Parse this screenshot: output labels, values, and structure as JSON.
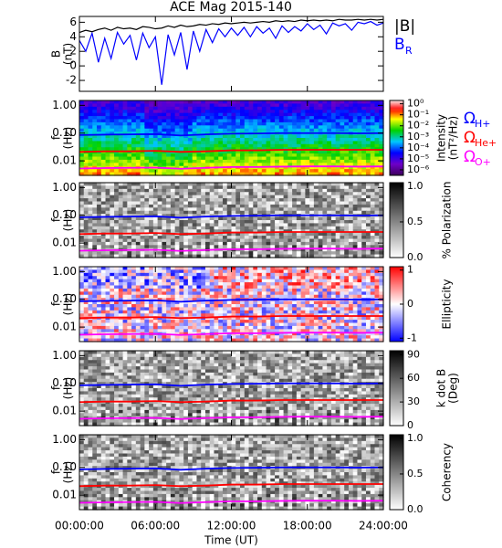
{
  "chart_data": [
    {
      "type": "line",
      "title": "ACE Mag 2015-140",
      "ylabel": [
        "B",
        "(nT)"
      ],
      "xlim": [
        0,
        24
      ],
      "ylim": [
        -3.5,
        6.8
      ],
      "yticks": [
        -2,
        0,
        2,
        4,
        6
      ],
      "x": [
        0,
        0.5,
        1,
        1.5,
        2,
        2.5,
        3,
        3.5,
        4,
        4.5,
        5,
        5.5,
        6,
        6.5,
        7,
        7.5,
        8,
        8.5,
        9,
        9.5,
        10,
        10.5,
        11,
        11.5,
        12,
        12.5,
        13,
        13.5,
        14,
        14.5,
        15,
        15.5,
        16,
        16.5,
        17,
        17.5,
        18,
        18.5,
        19,
        19.5,
        20,
        20.5,
        21,
        21.5,
        22,
        22.5,
        23,
        23.5,
        24
      ],
      "series": [
        {
          "name": "|B|",
          "color": "#000000",
          "values": [
            4.6,
            4.9,
            4.7,
            5.0,
            5.2,
            4.9,
            5.3,
            5.1,
            5.2,
            5.0,
            5.4,
            5.3,
            5.1,
            5.2,
            5.5,
            5.3,
            5.6,
            5.4,
            5.5,
            5.7,
            5.6,
            5.8,
            5.7,
            5.9,
            5.8,
            5.9,
            6.0,
            5.9,
            6.0,
            6.1,
            6.0,
            6.2,
            6.1,
            6.2,
            6.1,
            6.3,
            6.2,
            6.3,
            6.2,
            6.3,
            6.2,
            6.4,
            6.3,
            6.3,
            6.4,
            6.3,
            6.4,
            6.3,
            6.4
          ]
        },
        {
          "name": "B",
          "subscript": "R",
          "color": "#0000ff",
          "values": [
            3.5,
            2.0,
            4.5,
            0.5,
            3.8,
            1.0,
            4.6,
            3.0,
            4.2,
            0.8,
            4.5,
            2.5,
            4.0,
            -2.6,
            4.3,
            1.5,
            4.6,
            -0.5,
            4.8,
            2.0,
            5.0,
            3.2,
            5.1,
            4.0,
            5.2,
            4.2,
            5.3,
            4.0,
            5.4,
            4.5,
            5.2,
            3.8,
            5.5,
            4.6,
            5.4,
            4.8,
            5.8,
            5.0,
            5.6,
            4.4,
            5.9,
            5.5,
            5.8,
            4.9,
            6.0,
            5.8,
            6.1,
            5.6,
            5.9
          ]
        }
      ]
    },
    {
      "type": "spectrogram",
      "ylabel": [
        "f",
        "(Hz)"
      ],
      "log": true,
      "xlim": [
        0,
        24
      ],
      "ylim": [
        0.003,
        1.5
      ],
      "yticks": [
        {
          "value": 0.01,
          "label": "0.01"
        },
        {
          "value": 0.1,
          "label": "0.10"
        },
        {
          "value": 1,
          "label": "1.00"
        }
      ],
      "colorbar": {
        "label": [
          "Intensity",
          "(nT²/Hz)"
        ],
        "log": true,
        "colormap": "rainbow",
        "clim": [
          3.16e-07,
          2.0
        ],
        "ticks": [
          {
            "value": 1,
            "label": "10⁰"
          },
          {
            "value": 0.1,
            "label": "10⁻¹"
          },
          {
            "value": 0.01,
            "label": "10⁻²"
          },
          {
            "value": 0.001,
            "label": "10⁻³"
          },
          {
            "value": 0.0001,
            "label": "10⁻⁴"
          },
          {
            "value": 1e-05,
            "label": "10⁻⁵"
          },
          {
            "value": 1e-06,
            "label": "10⁻⁶"
          }
        ]
      },
      "x": [
        0,
        2,
        4,
        6,
        8,
        10,
        12,
        14,
        16,
        18,
        20,
        22,
        24
      ],
      "series": [
        {
          "name": "Ω",
          "subscript": "H+",
          "color": "#0000ff",
          "values": [
            0.085,
            0.088,
            0.09,
            0.092,
            0.082,
            0.09,
            0.095,
            0.097,
            0.1,
            0.1,
            0.1,
            0.098,
            0.1
          ]
        },
        {
          "name": "Ω",
          "subscript": "He+",
          "color": "#ff0000",
          "values": [
            0.021,
            0.022,
            0.022,
            0.023,
            0.021,
            0.022,
            0.024,
            0.024,
            0.025,
            0.025,
            0.025,
            0.025,
            0.025
          ]
        },
        {
          "name": "Ω",
          "subscript": "O+",
          "color": "#ff00ff",
          "values": [
            0.0053,
            0.0055,
            0.0056,
            0.0057,
            0.0052,
            0.0056,
            0.006,
            0.006,
            0.0062,
            0.0063,
            0.0063,
            0.0062,
            0.0063
          ]
        }
      ]
    },
    {
      "type": "spectrogram",
      "ylabel": [
        "f",
        "(Hz)"
      ],
      "log": true,
      "xlim": [
        0,
        24
      ],
      "ylim": [
        0.003,
        1.5
      ],
      "yticks": [
        {
          "value": 0.01,
          "label": "0.01"
        },
        {
          "value": 0.1,
          "label": "0.10"
        },
        {
          "value": 1,
          "label": "1.00"
        }
      ],
      "colorbar": {
        "label": [
          "% Polarization"
        ],
        "colormap": "gray_r",
        "clim": [
          0,
          1.05
        ],
        "ticks": [
          {
            "value": 0,
            "label": "0.0"
          },
          {
            "value": 0.5,
            "label": "0.5"
          },
          {
            "value": 1,
            "label": "1.0"
          }
        ]
      }
    },
    {
      "type": "spectrogram",
      "ylabel": [
        "f",
        "(Hz)"
      ],
      "log": true,
      "xlim": [
        0,
        24
      ],
      "ylim": [
        0.003,
        1.5
      ],
      "yticks": [
        {
          "value": 0.01,
          "label": "0.01"
        },
        {
          "value": 0.1,
          "label": "0.10"
        },
        {
          "value": 1,
          "label": "1.00"
        }
      ],
      "colorbar": {
        "label": [
          "Ellipticity"
        ],
        "colormap": "bwr",
        "clim": [
          -1.1,
          1.1
        ],
        "ticks": [
          -1,
          0,
          1
        ]
      }
    },
    {
      "type": "spectrogram",
      "ylabel": [
        "f",
        "(Hz)"
      ],
      "log": true,
      "xlim": [
        0,
        24
      ],
      "ylim": [
        0.003,
        1.5
      ],
      "yticks": [
        {
          "value": 0.01,
          "label": "0.01"
        },
        {
          "value": 0.1,
          "label": "0.10"
        },
        {
          "value": 1,
          "label": "1.00"
        }
      ],
      "colorbar": {
        "label": [
          "k dot B",
          "(Deg)"
        ],
        "colormap": "gray_r",
        "clim": [
          0,
          95
        ],
        "ticks": [
          0,
          30,
          60,
          90
        ]
      }
    },
    {
      "type": "spectrogram",
      "ylabel": [
        "f",
        "(Hz)"
      ],
      "log": true,
      "xlim": [
        0,
        24
      ],
      "ylim": [
        0.003,
        1.5
      ],
      "yticks": [
        {
          "value": 0.01,
          "label": "0.01"
        },
        {
          "value": 0.1,
          "label": "0.10"
        },
        {
          "value": 1,
          "label": "1.00"
        }
      ],
      "colorbar": {
        "label": [
          "Coherency"
        ],
        "colormap": "gray_r",
        "clim": [
          0,
          1.05
        ],
        "ticks": [
          {
            "value": 0,
            "label": "0.0"
          },
          {
            "value": 0.5,
            "label": "0.5"
          },
          {
            "value": 1,
            "label": "1.0"
          }
        ]
      },
      "xticks": [
        {
          "value": 0,
          "label": "00:00:00"
        },
        {
          "value": 6,
          "label": "06:00:00"
        },
        {
          "value": 12,
          "label": "12:00:00"
        },
        {
          "value": 18,
          "label": "18:00:00"
        },
        {
          "value": 24,
          "label": "24:00:00"
        }
      ],
      "xlabel": "Time (UT)"
    }
  ]
}
